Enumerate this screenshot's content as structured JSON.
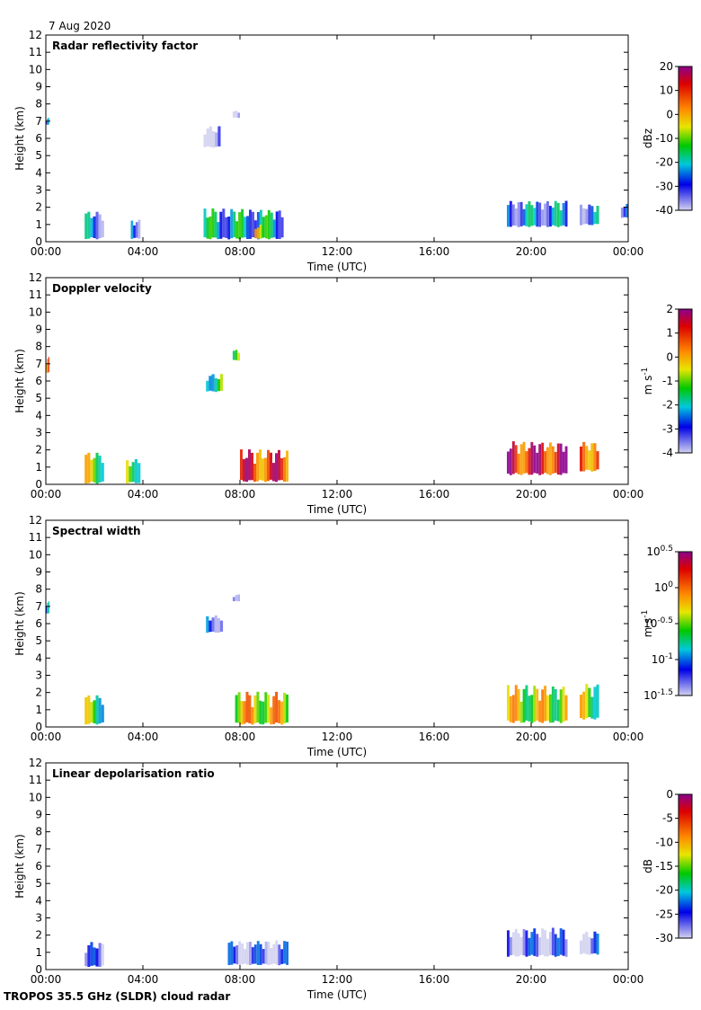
{
  "date_label": "7 Aug 2020",
  "footer": "TROPOS 35.5 GHz (SLDR) cloud radar",
  "colors": {
    "no_signal_gray": "#d6d6d6",
    "insect_orange": "#f0a020"
  },
  "chart_data": [
    {
      "type": "heatmap",
      "title": "Radar reflectivity factor",
      "xlabel": "Time (UTC)",
      "ylabel": "Height (km)",
      "xlim": [
        0,
        24
      ],
      "ylim": [
        0,
        12
      ],
      "xticks": [
        "00:00",
        "04:00",
        "08:00",
        "12:00",
        "16:00",
        "20:00",
        "00:00"
      ],
      "yticks": [
        "0",
        "1",
        "2",
        "3",
        "4",
        "5",
        "6",
        "7",
        "8",
        "9",
        "10",
        "11",
        "12"
      ],
      "colorbar": {
        "label": "dBz",
        "range": [
          -40,
          20
        ],
        "ticks": [
          "20",
          "10",
          "0",
          "-10",
          "-20",
          "-30",
          "-40"
        ],
        "palette": "jet-gray"
      },
      "features": [
        {
          "t0": 0.0,
          "t1": 0.15,
          "h0": 6.8,
          "h1": 7.2,
          "level": 0.15
        },
        {
          "t0": 1.6,
          "t1": 2.4,
          "h0": 0.2,
          "h1": 1.8,
          "level": 0.2
        },
        {
          "t0": 3.5,
          "t1": 3.9,
          "h0": 0.2,
          "h1": 1.3,
          "level": 0.2
        },
        {
          "t0": 6.5,
          "t1": 7.2,
          "h0": 5.5,
          "h1": 6.7,
          "level": 0.03
        },
        {
          "t0": 7.7,
          "t1": 8.0,
          "h0": 7.2,
          "h1": 7.6,
          "level": 0.03
        },
        {
          "t0": 6.5,
          "t1": 9.8,
          "h0": 0.2,
          "h1": 1.9,
          "level": 0.3
        },
        {
          "t0": 8.6,
          "t1": 9.0,
          "h0": 0.2,
          "h1": 1.0,
          "level": 0.5
        },
        {
          "t0": 19.0,
          "t1": 21.5,
          "h0": 0.9,
          "h1": 2.4,
          "level": 0.22
        },
        {
          "t0": 22.0,
          "t1": 22.8,
          "h0": 1.0,
          "h1": 2.2,
          "level": 0.2
        },
        {
          "t0": 23.7,
          "t1": 24.0,
          "h0": 1.4,
          "h1": 2.2,
          "level": 0.2
        }
      ]
    },
    {
      "type": "heatmap",
      "title": "Doppler velocity",
      "xlabel": "Time (UTC)",
      "ylabel": "Height (km)",
      "xlim": [
        0,
        24
      ],
      "ylim": [
        0,
        12
      ],
      "xticks": [
        "00:00",
        "04:00",
        "08:00",
        "12:00",
        "16:00",
        "20:00",
        "00:00"
      ],
      "yticks": [
        "0",
        "1",
        "2",
        "3",
        "4",
        "5",
        "6",
        "7",
        "8",
        "9",
        "10",
        "11",
        "12"
      ],
      "colorbar": {
        "label": "m s-1",
        "range": [
          -4,
          2
        ],
        "ticks": [
          "2",
          "1",
          "0",
          "-1",
          "-2",
          "-3",
          "-4"
        ],
        "palette": "jet"
      },
      "features": [
        {
          "t0": 0.0,
          "t1": 0.15,
          "h0": 6.5,
          "h1": 7.4,
          "level": 0.65
        },
        {
          "t0": 1.6,
          "t1": 2.4,
          "h0": 0.1,
          "h1": 1.9,
          "level": 0.5
        },
        {
          "t0": 3.3,
          "t1": 3.9,
          "h0": 0.1,
          "h1": 1.5,
          "level": 0.5
        },
        {
          "t0": 6.6,
          "t1": 7.3,
          "h0": 5.4,
          "h1": 6.4,
          "level": 0.45
        },
        {
          "t0": 7.7,
          "t1": 8.0,
          "h0": 7.2,
          "h1": 7.8,
          "level": 0.55
        },
        {
          "t0": 8.0,
          "t1": 10.0,
          "h0": 0.2,
          "h1": 2.0,
          "level": 0.8
        },
        {
          "t0": 19.0,
          "t1": 21.5,
          "h0": 0.6,
          "h1": 2.5,
          "level": 0.85
        },
        {
          "t0": 22.0,
          "t1": 22.8,
          "h0": 0.8,
          "h1": 2.5,
          "level": 0.8
        }
      ]
    },
    {
      "type": "heatmap",
      "title": "Spectral width",
      "xlabel": "Time (UTC)",
      "ylabel": "Height (km)",
      "xlim": [
        0,
        24
      ],
      "ylim": [
        0,
        12
      ],
      "xticks": [
        "00:00",
        "04:00",
        "08:00",
        "12:00",
        "16:00",
        "20:00",
        "00:00"
      ],
      "yticks": [
        "0",
        "1",
        "2",
        "3",
        "4",
        "5",
        "6",
        "7",
        "8",
        "9",
        "10",
        "11",
        "12"
      ],
      "colorbar": {
        "label": "m s-1",
        "range": [
          -1.5,
          0.5
        ],
        "log10": true,
        "ticks": [
          {
            "base": "10",
            "exp": "0.5"
          },
          {
            "base": "10",
            "exp": "0"
          },
          {
            "base": "10",
            "exp": "-0.5"
          },
          {
            "base": "10",
            "exp": "-1"
          },
          {
            "base": "10",
            "exp": "-1.5"
          }
        ],
        "palette": "jet"
      },
      "features": [
        {
          "t0": 0.0,
          "t1": 0.15,
          "h0": 6.6,
          "h1": 7.3,
          "level": 0.2
        },
        {
          "t0": 1.6,
          "t1": 2.4,
          "h0": 0.2,
          "h1": 1.9,
          "level": 0.45
        },
        {
          "t0": 6.6,
          "t1": 7.3,
          "h0": 5.5,
          "h1": 6.5,
          "level": 0.2
        },
        {
          "t0": 7.7,
          "t1": 8.0,
          "h0": 7.3,
          "h1": 7.7,
          "level": 0.2
        },
        {
          "t0": 7.8,
          "t1": 10.0,
          "h0": 0.2,
          "h1": 2.0,
          "level": 0.6
        },
        {
          "t0": 19.0,
          "t1": 21.5,
          "h0": 0.3,
          "h1": 2.4,
          "level": 0.55
        },
        {
          "t0": 22.0,
          "t1": 22.8,
          "h0": 0.5,
          "h1": 2.5,
          "level": 0.5
        }
      ]
    },
    {
      "type": "heatmap",
      "title": "Linear depolarisation ratio",
      "xlabel": "Time (UTC)",
      "ylabel": "Height (km)",
      "xlim": [
        0,
        24
      ],
      "ylim": [
        0,
        12
      ],
      "xticks": [
        "00:00",
        "04:00",
        "08:00",
        "12:00",
        "16:00",
        "20:00",
        "00:00"
      ],
      "yticks": [
        "0",
        "1",
        "2",
        "3",
        "4",
        "5",
        "6",
        "7",
        "8",
        "9",
        "10",
        "11",
        "12"
      ],
      "colorbar": {
        "label": "dB",
        "range": [
          -30,
          0
        ],
        "ticks": [
          "0",
          "-5",
          "-10",
          "-15",
          "-20",
          "-25",
          "-30"
        ],
        "palette": "jet"
      },
      "features": [
        {
          "t0": 1.6,
          "t1": 2.4,
          "h0": 0.2,
          "h1": 1.6,
          "level": 0.06
        },
        {
          "t0": 7.5,
          "t1": 10.0,
          "h0": 0.3,
          "h1": 1.7,
          "level": 0.08
        },
        {
          "t0": 19.0,
          "t1": 21.5,
          "h0": 0.8,
          "h1": 2.4,
          "level": 0.08
        },
        {
          "t0": 22.0,
          "t1": 22.8,
          "h0": 0.9,
          "h1": 2.2,
          "level": 0.1
        }
      ]
    }
  ]
}
